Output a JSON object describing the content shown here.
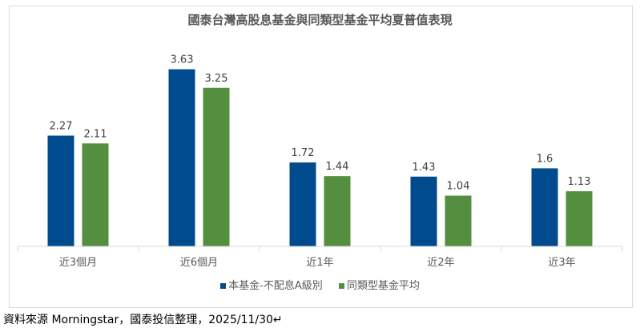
{
  "chart_data": {
    "type": "bar",
    "title": "國泰台灣高股息基金與同類型基金平均夏普值表現",
    "categories": [
      "近3個月",
      "近6個月",
      "近1年",
      "近2年",
      "近3年"
    ],
    "series": [
      {
        "name": "本基金-不配息A級別",
        "color": "#004B8D",
        "values": [
          2.27,
          3.63,
          1.72,
          1.43,
          1.6
        ]
      },
      {
        "name": "同類型基金平均",
        "color": "#548E3F",
        "values": [
          2.11,
          3.25,
          1.44,
          1.04,
          1.13
        ]
      }
    ],
    "ylim": [
      0,
      4
    ],
    "grid": false,
    "legend": "bottom"
  },
  "source": "資料來源 Morningstar，國泰投信整理，2025/11/30↵"
}
